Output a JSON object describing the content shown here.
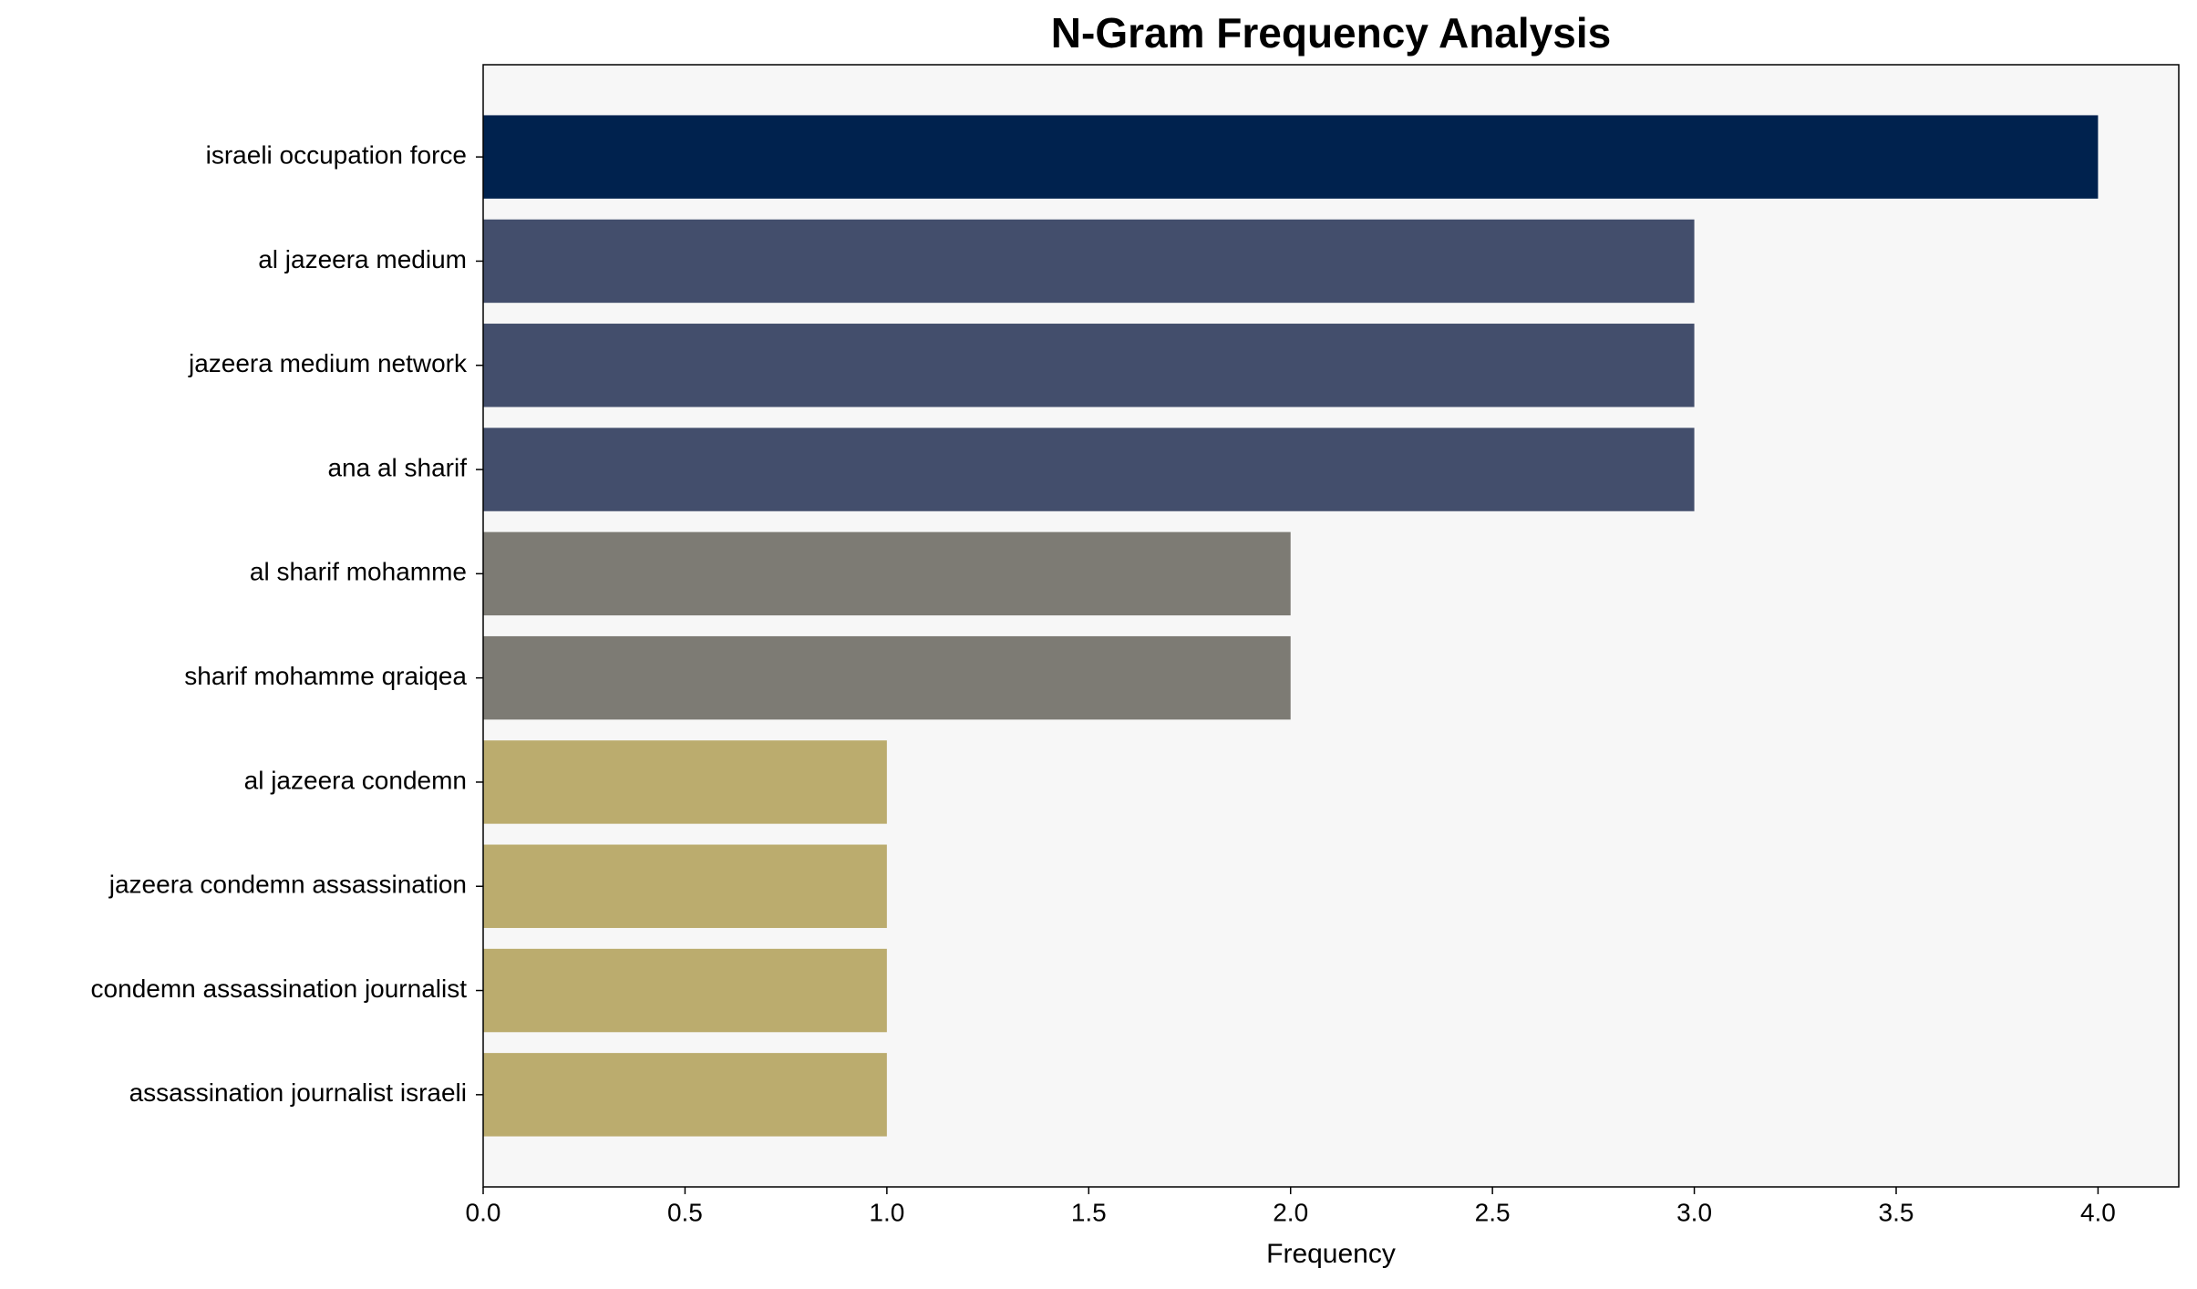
{
  "chart_data": {
    "type": "barh",
    "title": "N-Gram Frequency Analysis",
    "x_label": "Frequency",
    "categories": [
      "israeli occupation force",
      "al jazeera medium",
      "jazeera medium network",
      "ana al sharif",
      "al sharif mohamme",
      "sharif mohamme qraiqea",
      "al jazeera condemn",
      "jazeera condemn assassination",
      "condemn assassination journalist",
      "assassination journalist israeli"
    ],
    "values": [
      4,
      3,
      3,
      3,
      2,
      2,
      1,
      1,
      1,
      1
    ],
    "colors": [
      "#00224e",
      "#434e6c",
      "#434e6c",
      "#434e6c",
      "#7d7b74",
      "#7d7b74",
      "#bbac6e",
      "#bbac6e",
      "#bbac6e",
      "#bbac6e"
    ],
    "xlim": [
      0,
      4.2
    ],
    "xticks": [
      {
        "value": 0,
        "label": "0.0"
      },
      0.5,
      {
        "value": 1,
        "label": "1.0"
      },
      1.5,
      {
        "value": 2,
        "label": "2.0"
      },
      2.5,
      {
        "value": 3,
        "label": "3.0"
      },
      3.5,
      {
        "value": 4,
        "label": "4.0"
      }
    ],
    "grid": false
  }
}
